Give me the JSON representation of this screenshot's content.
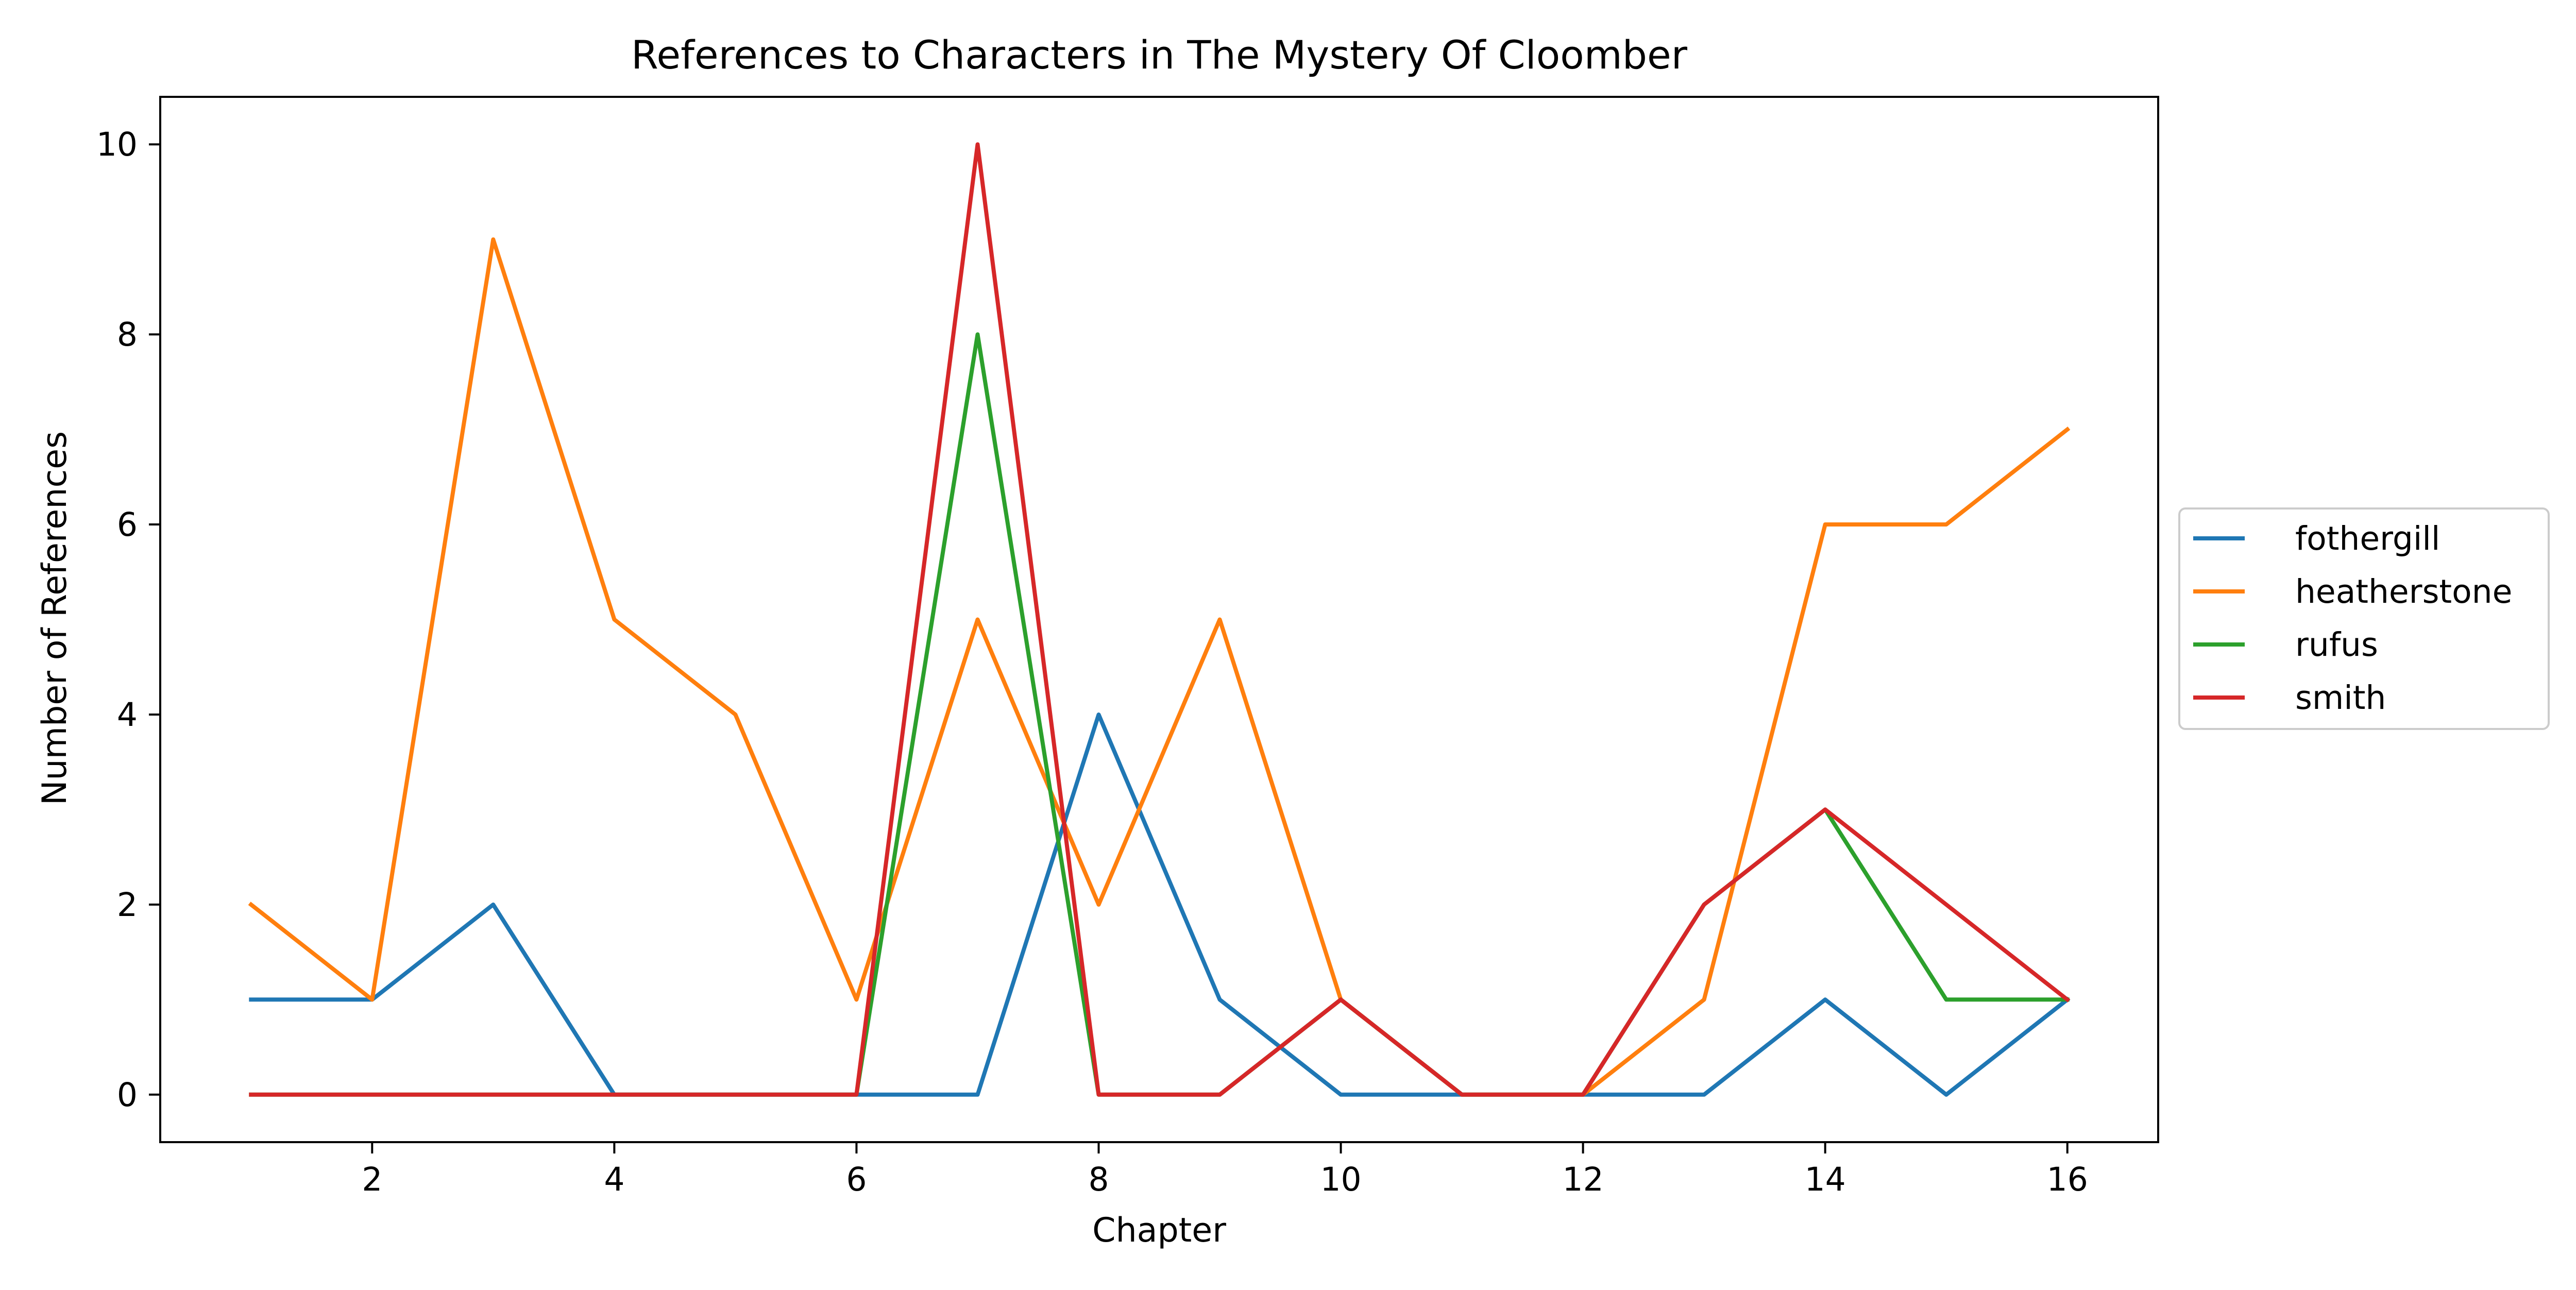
{
  "chart_data": {
    "type": "line",
    "title": "References to Characters in The Mystery Of Cloomber",
    "xlabel": "Chapter",
    "ylabel": "Number of References",
    "x": [
      1,
      2,
      3,
      4,
      5,
      6,
      7,
      8,
      9,
      10,
      11,
      12,
      13,
      14,
      15,
      16
    ],
    "xlim": [
      0.25,
      16.75
    ],
    "ylim": [
      -0.5,
      10.5
    ],
    "xticks": [
      2,
      4,
      6,
      8,
      10,
      12,
      14,
      16
    ],
    "yticks": [
      0,
      2,
      4,
      6,
      8,
      10
    ],
    "grid": false,
    "legend_position": "center-right-outside",
    "series": [
      {
        "name": "fothergill",
        "color": "#1f77b4",
        "values": [
          1,
          1,
          2,
          0,
          0,
          0,
          0,
          4,
          1,
          0,
          0,
          0,
          0,
          1,
          0,
          1
        ]
      },
      {
        "name": "heatherstone",
        "color": "#ff7f0e",
        "values": [
          2,
          1,
          9,
          5,
          4,
          1,
          5,
          2,
          5,
          1,
          0,
          0,
          1,
          6,
          6,
          7
        ]
      },
      {
        "name": "rufus",
        "color": "#2ca02c",
        "values": [
          0,
          0,
          0,
          0,
          0,
          0,
          8,
          0,
          0,
          1,
          0,
          0,
          2,
          3,
          1,
          1
        ]
      },
      {
        "name": "smith",
        "color": "#d62728",
        "values": [
          0,
          0,
          0,
          0,
          0,
          0,
          10,
          0,
          0,
          1,
          0,
          0,
          2,
          3,
          2,
          1
        ]
      }
    ]
  }
}
